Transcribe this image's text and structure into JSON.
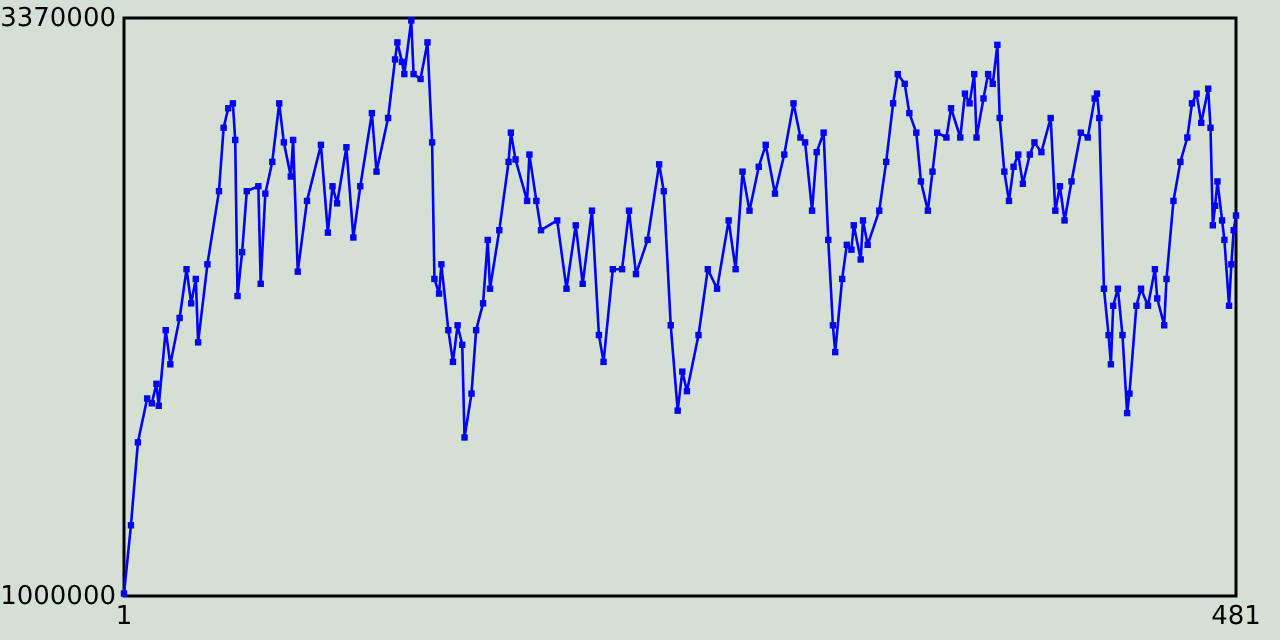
{
  "chart_data": {
    "type": "line",
    "marker": "square",
    "line_style": "solid",
    "color": "#0000ff",
    "xlim": [
      1,
      481
    ],
    "xticks": [
      1,
      481
    ],
    "ylim": [
      1000000,
      3370000
    ],
    "yticks": [
      1000000,
      3370000
    ],
    "x": [
      1,
      4,
      7,
      11,
      13,
      15,
      16,
      19,
      21,
      25,
      28,
      30,
      32,
      33,
      37,
      42,
      44,
      46,
      48,
      49,
      50,
      52,
      54,
      59,
      60,
      62,
      65,
      68,
      70,
      73,
      74,
      76,
      80,
      86,
      89,
      91,
      93,
      97,
      100,
      103,
      108,
      110,
      115,
      118,
      119,
      121,
      122,
      125,
      126,
      129,
      132,
      134,
      135,
      137,
      138,
      141,
      143,
      145,
      147,
      148,
      151,
      153,
      156,
      158,
      159,
      163,
      167,
      168,
      170,
      175,
      176,
      179,
      181,
      188,
      192,
      196,
      199,
      203,
      206,
      208,
      212,
      216,
      219,
      222,
      227,
      232,
      234,
      237,
      240,
      242,
      244,
      249,
      253,
      257,
      262,
      265,
      268,
      271,
      275,
      278,
      282,
      286,
      290,
      293,
      295,
      298,
      300,
      303,
      305,
      307,
      308,
      311,
      313,
      315,
      316,
      319,
      320,
      322,
      327,
      330,
      333,
      335,
      338,
      340,
      343,
      345,
      348,
      350,
      352,
      356,
      358,
      362,
      364,
      366,
      368,
      369,
      372,
      374,
      376,
      378,
      379,
      381,
      383,
      385,
      387,
      389,
      392,
      394,
      397,
      401,
      403,
      405,
      407,
      410,
      414,
      417,
      420,
      421,
      422,
      424,
      426,
      427,
      428,
      430,
      432,
      434,
      435,
      438,
      440,
      443,
      446,
      447,
      450,
      451,
      454,
      457,
      460,
      462,
      464,
      466,
      469,
      470,
      471,
      472,
      473,
      475,
      476,
      478,
      479,
      480,
      481
    ],
    "values": [
      1010000,
      1290000,
      1630000,
      1810000,
      1790000,
      1870000,
      1780000,
      2090000,
      1950000,
      2140000,
      2340000,
      2200000,
      2300000,
      2040000,
      2360000,
      2660000,
      2920000,
      3000000,
      3020000,
      2870000,
      2230000,
      2410000,
      2660000,
      2680000,
      2280000,
      2650000,
      2780000,
      3020000,
      2860000,
      2720000,
      2870000,
      2330000,
      2620000,
      2850000,
      2490000,
      2680000,
      2610000,
      2840000,
      2470000,
      2680000,
      2980000,
      2740000,
      2960000,
      3200000,
      3270000,
      3190000,
      3140000,
      3360000,
      3140000,
      3120000,
      3270000,
      2860000,
      2300000,
      2240000,
      2360000,
      2090000,
      1960000,
      2110000,
      2030000,
      1650000,
      1830000,
      2090000,
      2200000,
      2460000,
      2260000,
      2500000,
      2780000,
      2900000,
      2790000,
      2620000,
      2810000,
      2620000,
      2500000,
      2540000,
      2260000,
      2520000,
      2280000,
      2580000,
      2070000,
      1960000,
      2340000,
      2340000,
      2580000,
      2320000,
      2460000,
      2770000,
      2660000,
      2110000,
      1760000,
      1920000,
      1840000,
      2070000,
      2340000,
      2260000,
      2540000,
      2340000,
      2740000,
      2580000,
      2760000,
      2850000,
      2650000,
      2810000,
      3020000,
      2880000,
      2860000,
      2580000,
      2820000,
      2900000,
      2460000,
      2110000,
      2000000,
      2300000,
      2440000,
      2420000,
      2520000,
      2380000,
      2540000,
      2440000,
      2580000,
      2780000,
      3020000,
      3140000,
      3100000,
      2980000,
      2900000,
      2700000,
      2580000,
      2740000,
      2900000,
      2880000,
      3000000,
      2880000,
      3060000,
      3020000,
      3140000,
      2880000,
      3040000,
      3140000,
      3100000,
      3260000,
      2960000,
      2740000,
      2620000,
      2760000,
      2810000,
      2690000,
      2810000,
      2860000,
      2820000,
      2960000,
      2580000,
      2680000,
      2540000,
      2700000,
      2900000,
      2880000,
      3040000,
      3060000,
      2960000,
      2260000,
      2070000,
      1950000,
      2190000,
      2260000,
      2070000,
      1750000,
      1830000,
      2190000,
      2260000,
      2190000,
      2340000,
      2220000,
      2110000,
      2300000,
      2620000,
      2780000,
      2880000,
      3020000,
      3060000,
      2940000,
      3080000,
      2920000,
      2520000,
      2600000,
      2700000,
      2540000,
      2460000,
      2190000,
      2360000,
      2500000,
      2560000
    ]
  }
}
